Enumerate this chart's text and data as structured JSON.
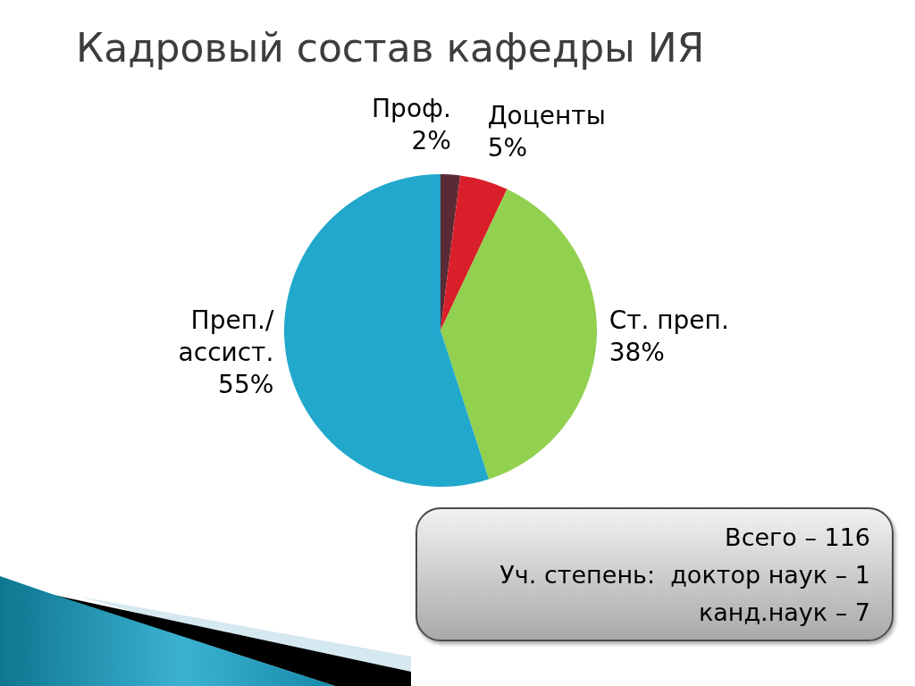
{
  "chart_data": {
    "type": "pie",
    "title": "Кадровый состав кафедры ИЯ",
    "categories": [
      "Проф.",
      "Доценты",
      "Ст. преп.",
      "Преп./\nассист."
    ],
    "values": [
      2,
      5,
      38,
      55
    ],
    "colors": [
      "#5a2a35",
      "#d9202a",
      "#92d050",
      "#21a8cc"
    ],
    "value_labels": [
      "2%",
      "5%",
      "38%",
      "55%"
    ],
    "annotations": [
      "Всего – 116",
      "Уч. степень:  доктор наук – 1",
      "канд.наук – 7"
    ]
  }
}
